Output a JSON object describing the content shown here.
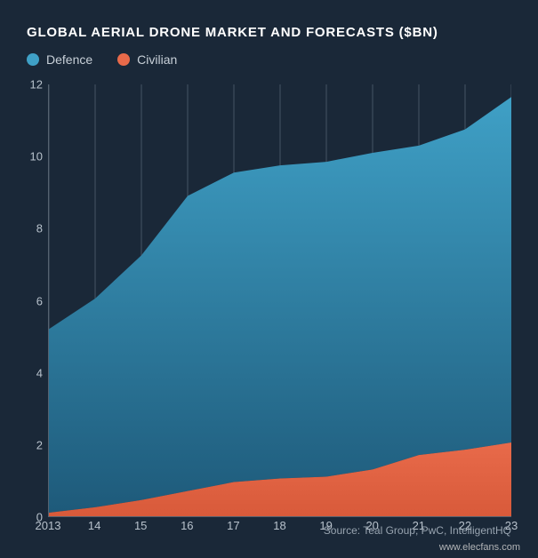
{
  "chart": {
    "type": "area",
    "title": "GLOBAL AERIAL DRONE MARKET AND FORECASTS ($BN)",
    "title_fontsize": 15,
    "title_color": "#ffffff",
    "background_color": "#1a2838",
    "legend": {
      "items": [
        {
          "label": "Defence",
          "color": "#3fa0c6"
        },
        {
          "label": "Civilian",
          "color": "#e86a4a"
        }
      ],
      "label_color": "#c8d0d8",
      "label_fontsize": 14
    },
    "x": {
      "categories": [
        "2013",
        "14",
        "15",
        "16",
        "17",
        "18",
        "19",
        "20",
        "21",
        "22",
        "23"
      ],
      "label_color": "#b8c2cc",
      "label_fontsize": 13
    },
    "y": {
      "lim": [
        0,
        12
      ],
      "tick_step": 2,
      "ticks": [
        0,
        2,
        4,
        6,
        8,
        10,
        12
      ],
      "label_color": "#b8c2cc",
      "label_fontsize": 13
    },
    "axis_line_color": "#556270",
    "grid_color": "#7a8a98",
    "grid_opacity": 0.45,
    "series": [
      {
        "name": "Civilian",
        "values": [
          0.1,
          0.25,
          0.45,
          0.7,
          0.95,
          1.05,
          1.1,
          1.3,
          1.7,
          1.85,
          2.05
        ],
        "fill_top": "#e86a4a",
        "fill_bottom": "#d85a3a",
        "opacity": 1.0
      },
      {
        "name": "Defence",
        "values": [
          5.1,
          5.8,
          6.8,
          8.2,
          8.6,
          8.7,
          8.75,
          8.8,
          8.6,
          8.9,
          9.6
        ],
        "fill_top": "#3fa0c6",
        "fill_bottom": "#1e5a7a",
        "opacity": 1.0
      }
    ],
    "stacked_totals": [
      5.2,
      6.05,
      7.25,
      8.9,
      9.55,
      9.75,
      9.85,
      10.1,
      10.3,
      10.75,
      11.65
    ],
    "source": "Source: Teal Group, PwC, IntelligentHQ",
    "watermark": "www.elecfans.com"
  }
}
